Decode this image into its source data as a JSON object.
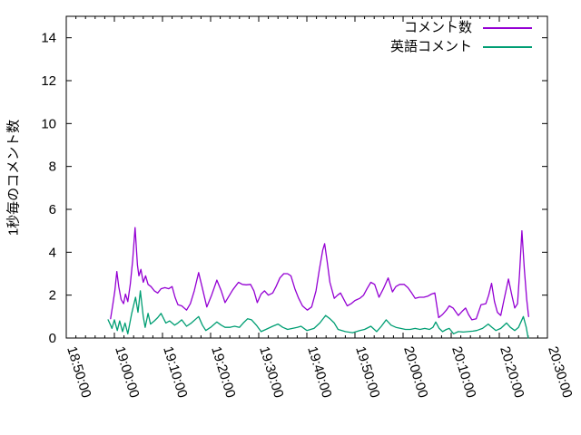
{
  "window": {
    "background": "#ffffff"
  },
  "chart_data": {
    "type": "line",
    "title": "",
    "xlabel": "",
    "ylabel": "1秒毎のコメント数",
    "grid": false,
    "legend_position": "top-right-inside",
    "axis_color": "#000000",
    "x_tick_labels": [
      "18:50:00",
      "19:00:00",
      "19:10:00",
      "19:20:00",
      "19:30:00",
      "19:40:00",
      "19:50:00",
      "20:00:00",
      "20:10:00",
      "20:20:00",
      "20:30:00"
    ],
    "x_range_minutes": [
      0,
      100
    ],
    "x_major_step_minutes": 10,
    "x_minor_step_minutes": 2,
    "ylim": [
      0,
      15
    ],
    "y_ticks": [
      0,
      2,
      4,
      6,
      8,
      10,
      12,
      14
    ],
    "series": [
      {
        "name": "コメント数",
        "color": "#9400d3",
        "points": [
          [
            9.2,
            0.9
          ],
          [
            9.7,
            1.6
          ],
          [
            10.1,
            2.2
          ],
          [
            10.5,
            3.1
          ],
          [
            10.9,
            2.4
          ],
          [
            11.4,
            1.8
          ],
          [
            11.9,
            1.6
          ],
          [
            12.3,
            2.05
          ],
          [
            12.8,
            1.7
          ],
          [
            13.3,
            2.5
          ],
          [
            13.8,
            3.6
          ],
          [
            14.3,
            5.15
          ],
          [
            14.8,
            3.4
          ],
          [
            15.1,
            2.9
          ],
          [
            15.5,
            3.2
          ],
          [
            16,
            2.6
          ],
          [
            16.5,
            2.9
          ],
          [
            17,
            2.5
          ],
          [
            17.6,
            2.4
          ],
          [
            18.3,
            2.2
          ],
          [
            19,
            2.1
          ],
          [
            19.7,
            2.3
          ],
          [
            20.5,
            2.35
          ],
          [
            21.3,
            2.3
          ],
          [
            22,
            2.4
          ],
          [
            22.6,
            1.9
          ],
          [
            23.2,
            1.55
          ],
          [
            24,
            1.5
          ],
          [
            25,
            1.3
          ],
          [
            25.8,
            1.6
          ],
          [
            26.6,
            2.2
          ],
          [
            27.5,
            3.05
          ],
          [
            28.2,
            2.4
          ],
          [
            29.2,
            1.45
          ],
          [
            30.2,
            2.0
          ],
          [
            31.3,
            2.7
          ],
          [
            32.2,
            2.2
          ],
          [
            33,
            1.65
          ],
          [
            33.8,
            1.95
          ],
          [
            34.6,
            2.25
          ],
          [
            35.8,
            2.6
          ],
          [
            36.6,
            2.5
          ],
          [
            37.4,
            2.48
          ],
          [
            38.3,
            2.5
          ],
          [
            39,
            2.2
          ],
          [
            39.7,
            1.65
          ],
          [
            40.5,
            2.05
          ],
          [
            41.2,
            2.2
          ],
          [
            42,
            2.0
          ],
          [
            42.9,
            2.1
          ],
          [
            43.6,
            2.4
          ],
          [
            44.4,
            2.8
          ],
          [
            45.2,
            3.0
          ],
          [
            46,
            3.0
          ],
          [
            46.7,
            2.9
          ],
          [
            47.5,
            2.3
          ],
          [
            48.3,
            1.85
          ],
          [
            49.1,
            1.5
          ],
          [
            50.1,
            1.3
          ],
          [
            51,
            1.45
          ],
          [
            51.9,
            2.2
          ],
          [
            52.6,
            3.2
          ],
          [
            53.3,
            4.1
          ],
          [
            53.7,
            4.4
          ],
          [
            54.2,
            3.6
          ],
          [
            54.8,
            2.6
          ],
          [
            55.7,
            1.85
          ],
          [
            56.4,
            2.0
          ],
          [
            57,
            2.1
          ],
          [
            57.7,
            1.8
          ],
          [
            58.4,
            1.5
          ],
          [
            59.2,
            1.6
          ],
          [
            60,
            1.75
          ],
          [
            61,
            1.85
          ],
          [
            61.8,
            2.0
          ],
          [
            62.5,
            2.3
          ],
          [
            63.3,
            2.6
          ],
          [
            64.1,
            2.5
          ],
          [
            65,
            1.9
          ],
          [
            65.9,
            2.3
          ],
          [
            66.9,
            2.8
          ],
          [
            67.8,
            2.15
          ],
          [
            68.5,
            2.4
          ],
          [
            69.3,
            2.5
          ],
          [
            70.2,
            2.5
          ],
          [
            71,
            2.35
          ],
          [
            71.8,
            2.1
          ],
          [
            72.5,
            1.85
          ],
          [
            73.4,
            1.9
          ],
          [
            74.3,
            1.9
          ],
          [
            75.1,
            1.95
          ],
          [
            75.9,
            2.05
          ],
          [
            76.6,
            2.1
          ],
          [
            77.4,
            0.95
          ],
          [
            78.2,
            1.1
          ],
          [
            79,
            1.3
          ],
          [
            79.6,
            1.5
          ],
          [
            80.4,
            1.4
          ],
          [
            81.5,
            1.05
          ],
          [
            82.3,
            1.25
          ],
          [
            83,
            1.4
          ],
          [
            83.6,
            1.1
          ],
          [
            84.3,
            0.85
          ],
          [
            85.2,
            0.9
          ],
          [
            86.2,
            1.55
          ],
          [
            87.2,
            1.6
          ],
          [
            87.8,
            2.0
          ],
          [
            88.4,
            2.55
          ],
          [
            89,
            1.7
          ],
          [
            89.6,
            1.2
          ],
          [
            90.3,
            1.05
          ],
          [
            91,
            1.8
          ],
          [
            91.9,
            2.75
          ],
          [
            92.6,
            2.0
          ],
          [
            93.2,
            1.4
          ],
          [
            93.8,
            1.6
          ],
          [
            94.2,
            3.0
          ],
          [
            94.7,
            5.0
          ],
          [
            95.2,
            3.2
          ],
          [
            95.7,
            1.8
          ],
          [
            96.1,
            1.0
          ]
        ]
      },
      {
        "name": "英語コメント",
        "color": "#009e73",
        "points": [
          [
            8.7,
            0.85
          ],
          [
            9.2,
            0.6
          ],
          [
            9.5,
            0.45
          ],
          [
            10,
            0.85
          ],
          [
            10.6,
            0.35
          ],
          [
            11.1,
            0.8
          ],
          [
            11.7,
            0.3
          ],
          [
            12.2,
            0.7
          ],
          [
            12.8,
            0.2
          ],
          [
            13.6,
            1.15
          ],
          [
            14.4,
            1.9
          ],
          [
            14.9,
            1.2
          ],
          [
            15.4,
            2.2
          ],
          [
            16,
            1.0
          ],
          [
            16.4,
            0.5
          ],
          [
            17,
            1.15
          ],
          [
            17.5,
            0.65
          ],
          [
            18.3,
            0.8
          ],
          [
            19,
            0.95
          ],
          [
            19.7,
            1.15
          ],
          [
            20.7,
            0.7
          ],
          [
            21.5,
            0.8
          ],
          [
            22.5,
            0.6
          ],
          [
            23.2,
            0.7
          ],
          [
            24,
            0.85
          ],
          [
            25,
            0.55
          ],
          [
            26,
            0.7
          ],
          [
            27,
            0.9
          ],
          [
            27.5,
            1.0
          ],
          [
            28.3,
            0.6
          ],
          [
            29,
            0.35
          ],
          [
            30,
            0.5
          ],
          [
            31.3,
            0.75
          ],
          [
            32.2,
            0.6
          ],
          [
            33,
            0.5
          ],
          [
            34,
            0.5
          ],
          [
            35,
            0.55
          ],
          [
            36,
            0.5
          ],
          [
            36.8,
            0.7
          ],
          [
            37.7,
            0.9
          ],
          [
            38.5,
            0.85
          ],
          [
            39.5,
            0.6
          ],
          [
            40.5,
            0.3
          ],
          [
            41.5,
            0.4
          ],
          [
            42.9,
            0.55
          ],
          [
            44,
            0.65
          ],
          [
            45,
            0.5
          ],
          [
            46,
            0.4
          ],
          [
            47,
            0.45
          ],
          [
            48,
            0.5
          ],
          [
            48.8,
            0.55
          ],
          [
            50,
            0.35
          ],
          [
            51.5,
            0.45
          ],
          [
            52.7,
            0.7
          ],
          [
            53.9,
            1.05
          ],
          [
            54.8,
            0.9
          ],
          [
            55.7,
            0.7
          ],
          [
            56.5,
            0.4
          ],
          [
            58,
            0.3
          ],
          [
            59.5,
            0.25
          ],
          [
            61,
            0.35
          ],
          [
            62,
            0.4
          ],
          [
            63.3,
            0.55
          ],
          [
            64.5,
            0.3
          ],
          [
            65.5,
            0.55
          ],
          [
            66.5,
            0.85
          ],
          [
            67.5,
            0.6
          ],
          [
            68.5,
            0.5
          ],
          [
            69.5,
            0.45
          ],
          [
            70.5,
            0.4
          ],
          [
            71.5,
            0.4
          ],
          [
            72.5,
            0.45
          ],
          [
            73.5,
            0.4
          ],
          [
            74.5,
            0.45
          ],
          [
            75.5,
            0.4
          ],
          [
            76.2,
            0.5
          ],
          [
            76.8,
            0.75
          ],
          [
            77.5,
            0.45
          ],
          [
            78.2,
            0.3
          ],
          [
            79,
            0.4
          ],
          [
            79.6,
            0.45
          ],
          [
            80.5,
            0.2
          ],
          [
            81.5,
            0.3
          ],
          [
            82.5,
            0.28
          ],
          [
            83.5,
            0.3
          ],
          [
            84.5,
            0.32
          ],
          [
            85.3,
            0.35
          ],
          [
            86.5,
            0.45
          ],
          [
            87.7,
            0.65
          ],
          [
            88.5,
            0.5
          ],
          [
            89.3,
            0.35
          ],
          [
            90.3,
            0.45
          ],
          [
            91.5,
            0.7
          ],
          [
            92.3,
            0.5
          ],
          [
            93.2,
            0.35
          ],
          [
            94,
            0.5
          ],
          [
            95,
            1.0
          ],
          [
            95.6,
            0.5
          ],
          [
            96,
            0.0
          ]
        ]
      }
    ]
  }
}
